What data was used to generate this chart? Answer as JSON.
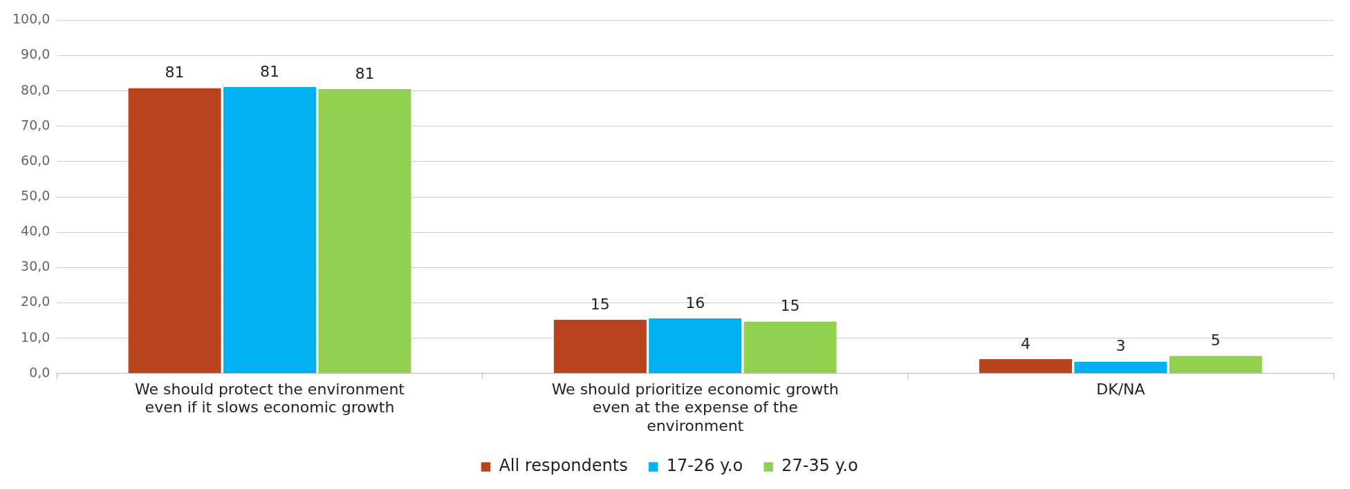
{
  "chart_data": {
    "type": "bar",
    "categories": [
      "We should protect the environment even if it slows economic growth",
      "We should prioritize economic growth even at the expense of the environment",
      "DK/NA"
    ],
    "series": [
      {
        "name": "All respondents",
        "color": "#b8441f",
        "values": [
          80.8,
          15.2,
          4.1
        ],
        "value_labels": [
          "81",
          "15",
          "4"
        ]
      },
      {
        "name": "17-26 y.o",
        "color": "#00b0f0",
        "values": [
          81.1,
          15.6,
          3.4
        ],
        "value_labels": [
          "81",
          "16",
          "3"
        ]
      },
      {
        "name": "27-35 y.o",
        "color": "#92d050",
        "values": [
          80.5,
          14.7,
          5.0
        ],
        "value_labels": [
          "81",
          "15",
          "5"
        ]
      }
    ],
    "ylim": [
      0,
      100
    ],
    "yticks": [
      {
        "value": 0,
        "label": "0,0"
      },
      {
        "value": 10,
        "label": "10,0"
      },
      {
        "value": 20,
        "label": "20,0"
      },
      {
        "value": 30,
        "label": "30,0"
      },
      {
        "value": 40,
        "label": "40,0"
      },
      {
        "value": 50,
        "label": "50,0"
      },
      {
        "value": 60,
        "label": "60,0"
      },
      {
        "value": 70,
        "label": "70,0"
      },
      {
        "value": 80,
        "label": "80,0"
      },
      {
        "value": 90,
        "label": "90,0"
      },
      {
        "value": 100,
        "label": "100,0"
      }
    ],
    "grid": "y",
    "legend": "bottom"
  }
}
